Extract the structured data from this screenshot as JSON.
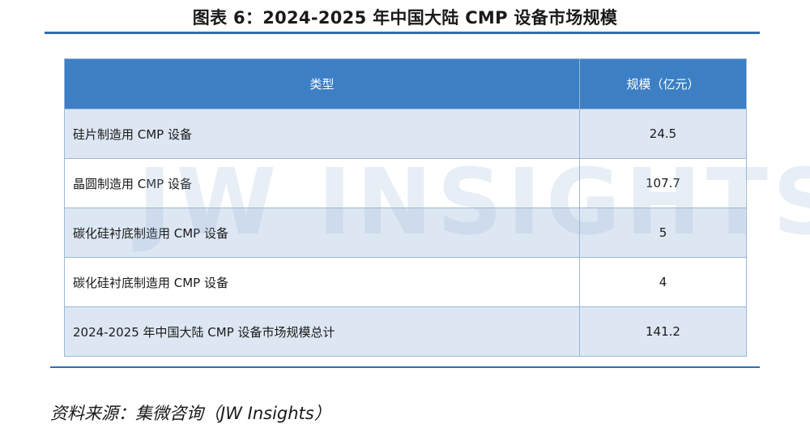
{
  "title": "图表 6：2024-2025 年中国大陆 CMP 设备市场规模",
  "table": {
    "headers": [
      "类型",
      "规模（亿元）"
    ],
    "rows": [
      {
        "type": "硅片制造用 CMP 设备",
        "value": "24.5"
      },
      {
        "type": "晶圆制造用 CMP 设备",
        "value": "107.7"
      },
      {
        "type": "碳化硅衬底制造用 CMP 设备",
        "value": "5"
      },
      {
        "type": "碳化硅衬底制造用 CMP 设备",
        "value": "4"
      },
      {
        "type": "2024-2025 年中国大陆 CMP 设备市场规模总计",
        "value": "141.2"
      }
    ]
  },
  "watermark": "JW INSIGHTS",
  "source": "资料来源：集微咨询（JW Insights）",
  "colors": {
    "accent": "#2f6fae",
    "header_bg": "#3c7fc4",
    "alt_row": "#dde7f3"
  }
}
